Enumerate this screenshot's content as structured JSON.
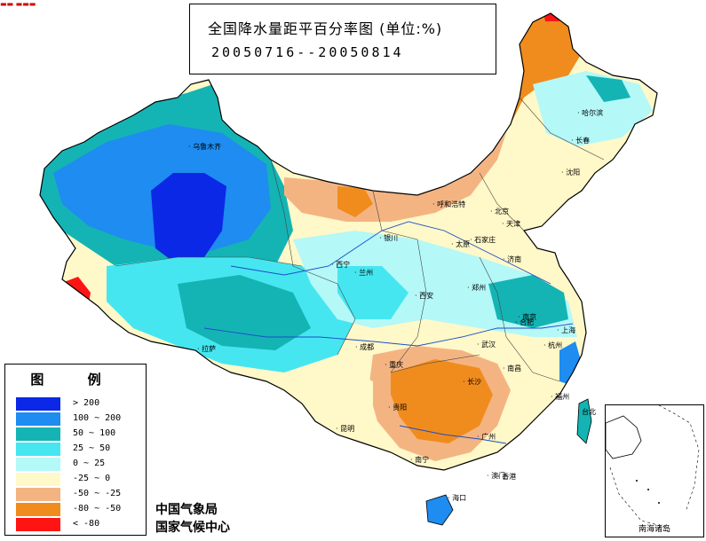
{
  "title": {
    "main": "全国降水量距平百分率图 (单位:%)",
    "period": "20050716--20050814"
  },
  "legend": {
    "title": "图 例",
    "items": [
      {
        "label": "> 200",
        "color": "#0a28e6"
      },
      {
        "label": "100 ~ 200",
        "color": "#1e8cf0"
      },
      {
        "label": "50 ~ 100",
        "color": "#14b4b4"
      },
      {
        "label": "25 ~ 50",
        "color": "#46e6f0"
      },
      {
        "label": "0 ~ 25",
        "color": "#b4f8f8"
      },
      {
        "label": "-25 ~ 0",
        "color": "#fff8c8"
      },
      {
        "label": "-50 ~ -25",
        "color": "#f4b482"
      },
      {
        "label": "-80 ~ -50",
        "color": "#f08c1e"
      },
      {
        "label": "< -80",
        "color": "#ff1414"
      }
    ]
  },
  "agency": {
    "line1": "中国气象局",
    "line2": "国家气候中心"
  },
  "inset": {
    "label": "南海诸岛"
  },
  "top_mark": "▬▬ ▬▬▬",
  "cities": [
    {
      "name": "乌鲁木齐"
    },
    {
      "name": "呼和浩特"
    },
    {
      "name": "哈尔滨"
    },
    {
      "name": "长春"
    },
    {
      "name": "沈阳"
    },
    {
      "name": "北京"
    },
    {
      "name": "天津"
    },
    {
      "name": "石家庄"
    },
    {
      "name": "太原"
    },
    {
      "name": "银川"
    },
    {
      "name": "济南"
    },
    {
      "name": "西宁"
    },
    {
      "name": "兰州"
    },
    {
      "name": "西安"
    },
    {
      "name": "郑州"
    },
    {
      "name": "南京"
    },
    {
      "name": "合肥"
    },
    {
      "name": "上海"
    },
    {
      "name": "拉萨"
    },
    {
      "name": "成都"
    },
    {
      "name": "武汉"
    },
    {
      "name": "杭州"
    },
    {
      "name": "重庆"
    },
    {
      "name": "长沙"
    },
    {
      "name": "南昌"
    },
    {
      "name": "福州"
    },
    {
      "name": "贵阳"
    },
    {
      "name": "台北"
    },
    {
      "name": "昆明"
    },
    {
      "name": "南宁"
    },
    {
      "name": "广州"
    },
    {
      "name": "香港"
    },
    {
      "name": "澳门"
    },
    {
      "name": "海口"
    }
  ]
}
